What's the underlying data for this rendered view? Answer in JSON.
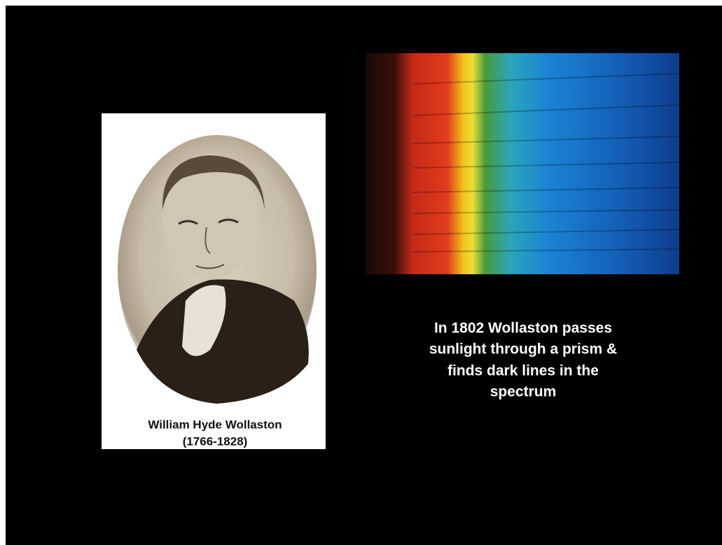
{
  "portrait": {
    "caption": [
      "William Hyde Wollaston",
      "(1766-1828)"
    ]
  },
  "description": {
    "lines": [
      "In 1802 Wollaston passes",
      "sunlight through a prism &",
      "finds dark lines in the",
      "spectrum"
    ]
  }
}
